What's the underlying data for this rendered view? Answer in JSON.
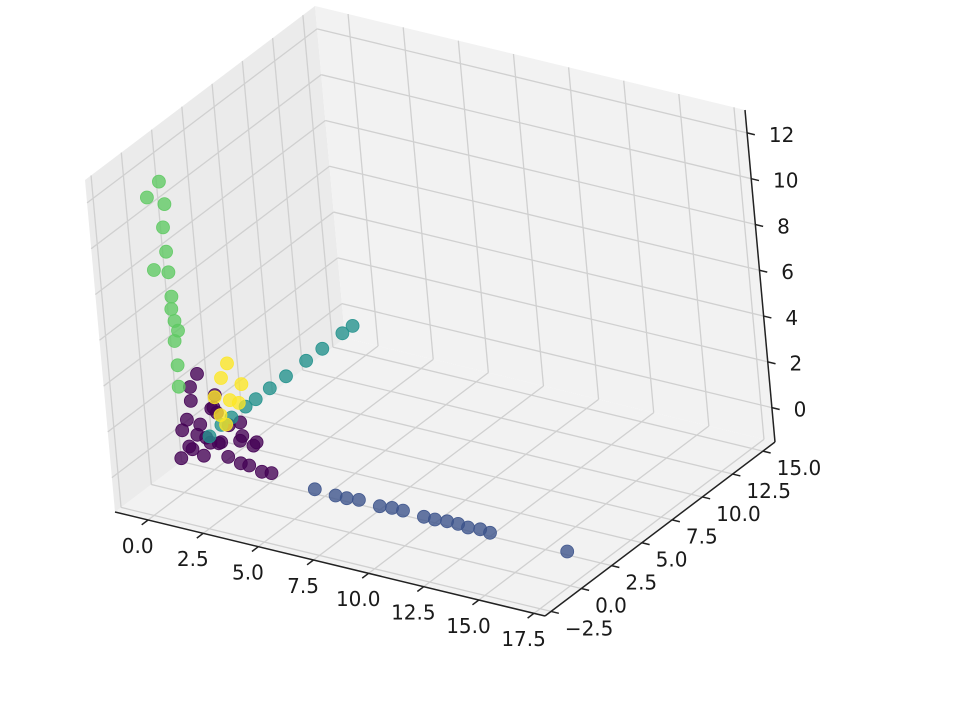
{
  "chart_data": {
    "type": "scatter",
    "projection": "3d",
    "grid": true,
    "colormap": "viridis",
    "xlim": [
      -1.5,
      18
    ],
    "ylim": [
      -3,
      16
    ],
    "zlim": [
      -1.5,
      13
    ],
    "x_ticks": [
      "0.0",
      "2.5",
      "5.0",
      "7.5",
      "10.0",
      "12.5",
      "15.0",
      "17.5"
    ],
    "y_ticks": [
      "−2.5",
      "0.0",
      "2.5",
      "5.0",
      "7.5",
      "10.0",
      "12.5",
      "15.0"
    ],
    "z_ticks": [
      "0",
      "2",
      "4",
      "6",
      "8",
      "10",
      "12"
    ],
    "colors": {
      "cluster_0": "#440154",
      "cluster_1": "#3b528b",
      "cluster_2": "#21918c",
      "cluster_3": "#5ec962",
      "cluster_4": "#fde725"
    },
    "series": [
      {
        "cluster": 0,
        "points": [
          [
            0.0,
            0.0,
            0.0
          ],
          [
            0.3,
            0.2,
            0.5
          ],
          [
            0.6,
            0.4,
            1.0
          ],
          [
            1.0,
            0.1,
            0.3
          ],
          [
            0.2,
            0.6,
            0.2
          ],
          [
            1.5,
            0.5,
            0.8
          ],
          [
            2.0,
            0.3,
            0.4
          ],
          [
            2.5,
            0.4,
            0.2
          ],
          [
            3.0,
            0.2,
            0.3
          ],
          [
            3.5,
            0.3,
            0.1
          ],
          [
            4.0,
            0.2,
            0.2
          ],
          [
            1.2,
            1.2,
            0.5
          ],
          [
            1.8,
            0.9,
            1.5
          ],
          [
            0.8,
            1.5,
            1.8
          ],
          [
            0.5,
            0.3,
            2.5
          ],
          [
            0.4,
            0.5,
            3.0
          ],
          [
            0.6,
            0.8,
            3.5
          ],
          [
            1.0,
            1.0,
            2.0
          ],
          [
            1.4,
            0.7,
            2.8
          ],
          [
            2.2,
            1.2,
            1.0
          ],
          [
            2.8,
            1.0,
            0.8
          ],
          [
            0.1,
            0.1,
            1.2
          ],
          [
            0.9,
            0.2,
            1.6
          ],
          [
            1.6,
            0.4,
            2.2
          ],
          [
            2.4,
            0.8,
            1.8
          ],
          [
            3.2,
            0.6,
            1.2
          ],
          [
            0.7,
            0.9,
            0.7
          ],
          [
            1.3,
            0.2,
            0.9
          ],
          [
            0.0,
            0.7,
            1.4
          ],
          [
            1.9,
            1.5,
            0.6
          ]
        ]
      },
      {
        "cluster": 1,
        "points": [
          [
            6.0,
            0.1,
            0.0
          ],
          [
            7.0,
            0.0,
            0.0
          ],
          [
            8.0,
            0.1,
            0.0
          ],
          [
            9.0,
            0.0,
            0.0
          ],
          [
            10.0,
            0.1,
            0.0
          ],
          [
            11.0,
            0.0,
            0.0
          ],
          [
            12.0,
            0.1,
            0.0
          ],
          [
            13.0,
            0.0,
            0.0
          ],
          [
            13.5,
            0.1,
            0.0
          ],
          [
            14.0,
            0.0,
            0.0
          ],
          [
            7.5,
            0.0,
            0.0
          ],
          [
            9.5,
            0.1,
            0.0
          ],
          [
            11.5,
            0.0,
            0.0
          ],
          [
            12.5,
            0.1,
            0.0
          ],
          [
            17.5,
            0.0,
            0.0
          ]
        ]
      },
      {
        "cluster": 2,
        "points": [
          [
            0.2,
            2.0,
            0.2
          ],
          [
            0.2,
            3.0,
            0.3
          ],
          [
            0.1,
            4.0,
            0.2
          ],
          [
            0.2,
            5.0,
            0.3
          ],
          [
            0.1,
            6.0,
            0.2
          ],
          [
            0.2,
            7.0,
            0.3
          ],
          [
            0.1,
            8.5,
            0.2
          ],
          [
            0.2,
            10.0,
            0.3
          ],
          [
            0.1,
            11.5,
            0.2
          ],
          [
            0.2,
            13.0,
            0.3
          ],
          [
            0.1,
            14.0,
            0.2
          ]
        ]
      },
      {
        "cluster": 3,
        "points": [
          [
            0.0,
            0.3,
            3.0
          ],
          [
            0.1,
            0.2,
            4.0
          ],
          [
            0.0,
            0.3,
            5.0
          ],
          [
            0.2,
            0.1,
            6.0
          ],
          [
            0.1,
            0.2,
            7.0
          ],
          [
            0.0,
            0.3,
            8.0
          ],
          [
            0.1,
            0.1,
            9.0
          ],
          [
            0.0,
            0.2,
            10.0
          ],
          [
            0.1,
            0.3,
            11.0
          ],
          [
            0.0,
            0.2,
            12.0
          ],
          [
            0.2,
            0.3,
            5.5
          ],
          [
            0.1,
            0.1,
            6.5
          ],
          [
            -0.8,
            0.5,
            11.0
          ],
          [
            -0.6,
            0.2,
            8.0
          ]
        ]
      },
      {
        "cluster": 4,
        "points": [
          [
            0.5,
            2.5,
            1.0
          ],
          [
            0.7,
            3.0,
            1.5
          ],
          [
            0.6,
            2.0,
            2.0
          ],
          [
            0.8,
            3.5,
            1.2
          ],
          [
            0.5,
            2.8,
            2.5
          ],
          [
            0.9,
            2.2,
            0.8
          ],
          [
            0.7,
            4.0,
            1.8
          ],
          [
            0.6,
            3.2,
            3.0
          ]
        ]
      }
    ]
  }
}
